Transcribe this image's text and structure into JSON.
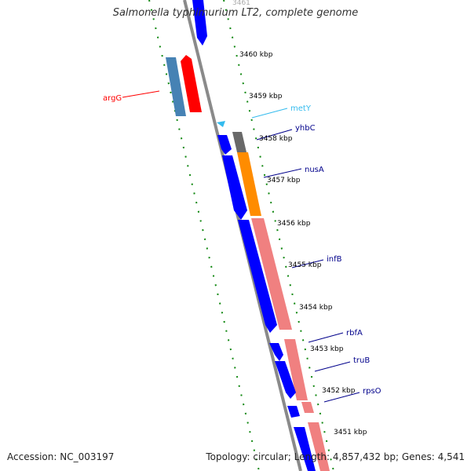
{
  "header": {
    "title": "Salmonella typhimurium LT2, complete genome"
  },
  "footer": {
    "accession": "Accession: NC_003197",
    "topology": "Topology: circular; Length: 4,857,432 bp; Genes: 4,541"
  },
  "ticks": {
    "t3460": "3460 kbp",
    "t3459": "3459 kbp",
    "t3458": "3458 kbp",
    "t3457": "3457 kbp",
    "t3456": "3456 kbp",
    "t3455": "3455 kbp",
    "t3454": "3454 kbp",
    "t3453": "3453 kbp",
    "t3452": "3452 kbp",
    "t3451": "3451 kbp"
  },
  "genes": {
    "argG": "argG",
    "metY": "metY",
    "yhbC": "yhbC",
    "nusA": "nusA",
    "infB": "infB",
    "rbfA": "rbfA",
    "truB": "truB",
    "rpsO": "rpsO"
  },
  "colors": {
    "cds_forward": "#0000ff",
    "rna_or_light": "#f08080",
    "gene_highlight": "#ff0000",
    "steelblue": "#4682b4",
    "orange": "#ff8c00",
    "gray": "#696969",
    "trna": "#33bbee",
    "dotline": "#118811",
    "backbone": "#7f7f7f"
  }
}
